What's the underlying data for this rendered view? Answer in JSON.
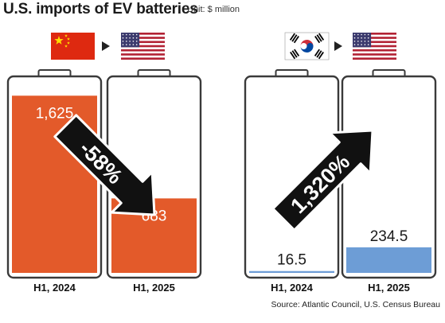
{
  "header": {
    "title": "U.S. imports of EV batteries",
    "unit": "Unit: $ million"
  },
  "source": "Source: Atlantic Council, U.S. Census Bureau",
  "colors": {
    "china_series": "#e35a2a",
    "korea_series": "#6d9dd6",
    "battery_outline": "#3a3a3a",
    "arrow": "#111111"
  },
  "chart_data": [
    {
      "type": "bar",
      "group": "China to U.S.",
      "flow_icons": [
        "china-flag-icon",
        "arrow-right-icon",
        "usa-flag-icon"
      ],
      "categories": [
        "H1, 2024",
        "H1, 2025"
      ],
      "values": [
        1625,
        683
      ],
      "value_labels": [
        "1,625",
        "683"
      ],
      "change_label": "-58%",
      "change_direction": "down",
      "ylim": [
        0,
        1700
      ],
      "color": "#e35a2a"
    },
    {
      "type": "bar",
      "group": "South Korea to U.S.",
      "flow_icons": [
        "south-korea-flag-icon",
        "arrow-right-icon",
        "usa-flag-icon"
      ],
      "categories": [
        "H1, 2024",
        "H1, 2025"
      ],
      "values": [
        16.5,
        234.5
      ],
      "value_labels": [
        "16.5",
        "234.5"
      ],
      "change_label": "1,320%",
      "change_direction": "up",
      "ylim": [
        0,
        1700
      ],
      "color": "#6d9dd6"
    }
  ]
}
